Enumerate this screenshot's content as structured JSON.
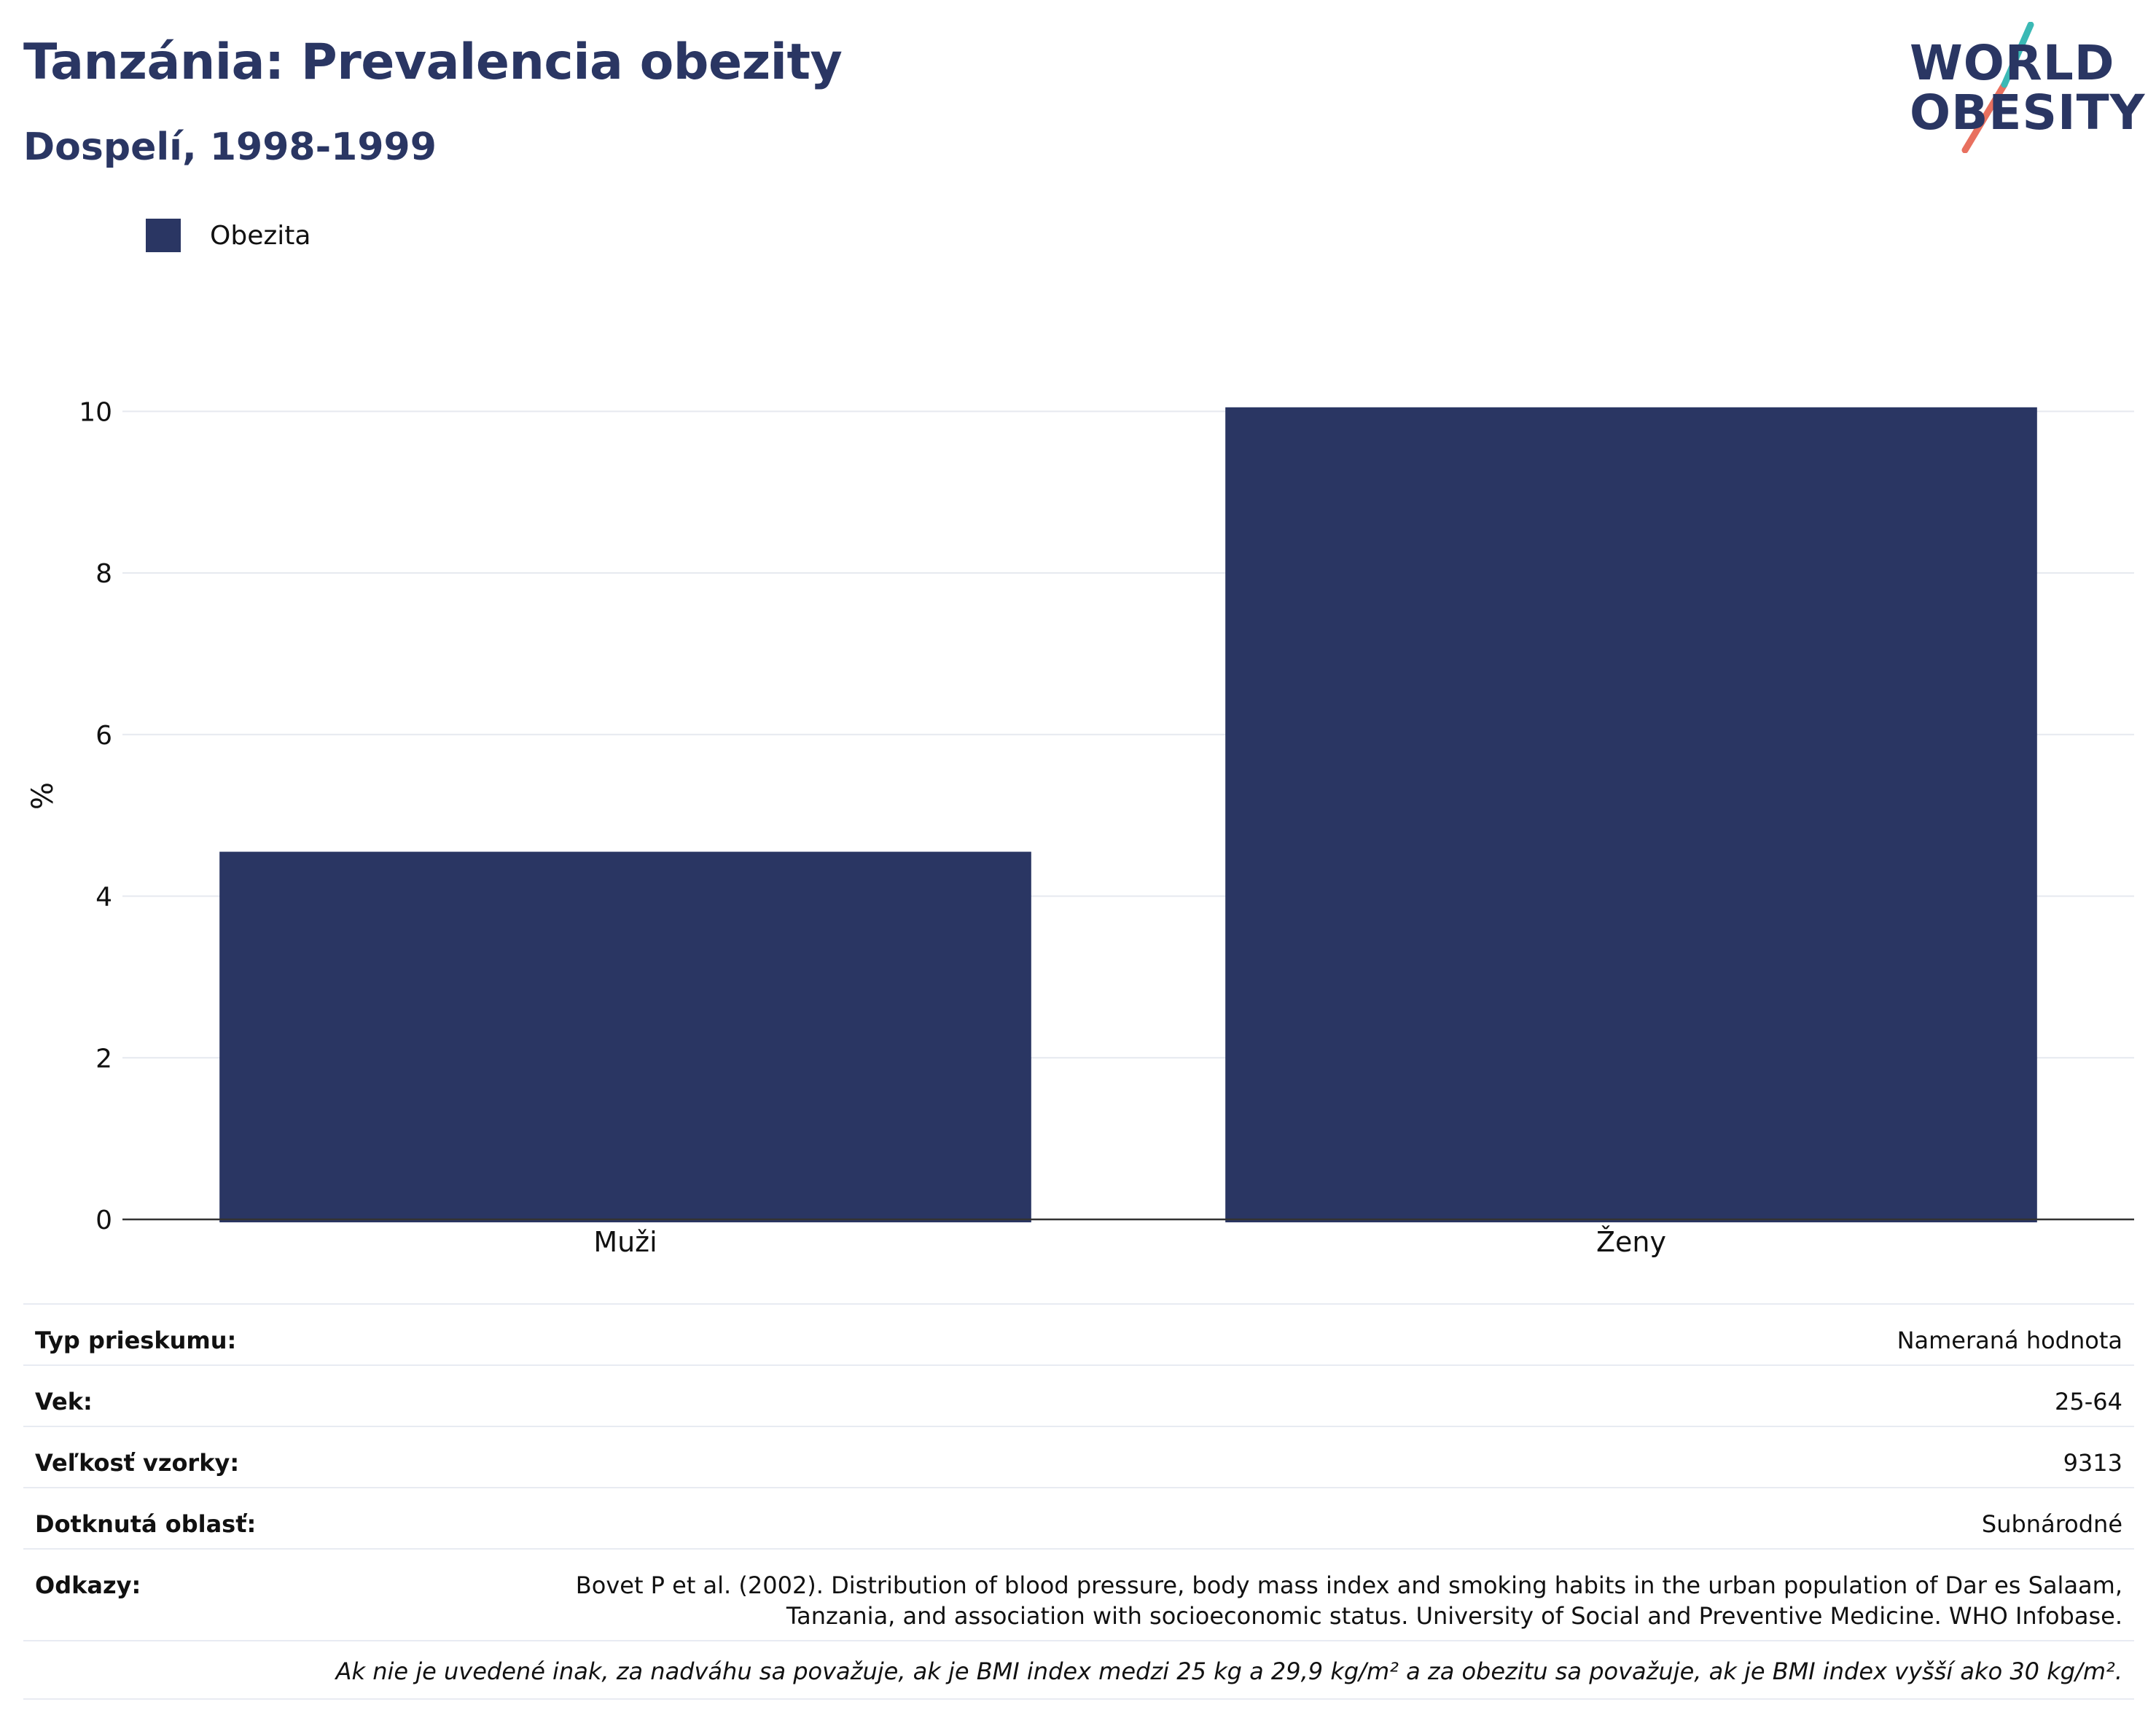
{
  "header": {
    "title": "Tanzánia: Prevalencia obezity",
    "subtitle": "Dospelí, 1998-1999"
  },
  "logo": {
    "line1": "WORLD",
    "line2": "OBESITY",
    "text_color": "#2a3663",
    "accent_teal": "#3bb9b5",
    "accent_coral": "#e8705f"
  },
  "legend": {
    "label": "Obezita",
    "color": "#2a3663"
  },
  "chart_data": {
    "type": "bar",
    "categories": [
      "Muži",
      "Ženy"
    ],
    "series": [
      {
        "name": "Obezita",
        "values": [
          4.55,
          10.05
        ],
        "color": "#2a3663"
      }
    ],
    "ylabel": "%",
    "xlabel": "",
    "ylim": [
      0,
      10.4
    ],
    "yticks": [
      0,
      2,
      4,
      6,
      8,
      10
    ],
    "grid": true,
    "legend_position": "top-left"
  },
  "info": {
    "rows": [
      {
        "label": "Typ prieskumu:",
        "value": "Nameraná hodnota"
      },
      {
        "label": "Vek:",
        "value": "25-64"
      },
      {
        "label": "Veľkosť vzorky:",
        "value": "9313"
      },
      {
        "label": "Dotknutá oblasť:",
        "value": "Subnárodné"
      }
    ],
    "reference": {
      "label": "Odkazy:",
      "line1": "Bovet P et al. (2002). Distribution of blood pressure, body mass index and smoking habits in the urban population of Dar es Salaam,",
      "line2": "Tanzania, and association with socioeconomic status. University of Social and Preventive Medicine. WHO Infobase."
    },
    "note": "Ak nie je uvedené inak, za nadváhu sa považuje, ak je BMI index medzi 25 kg a 29,9 kg/m² a za obezitu sa považuje, ak je BMI index vyšší ako 30 kg/m²."
  }
}
